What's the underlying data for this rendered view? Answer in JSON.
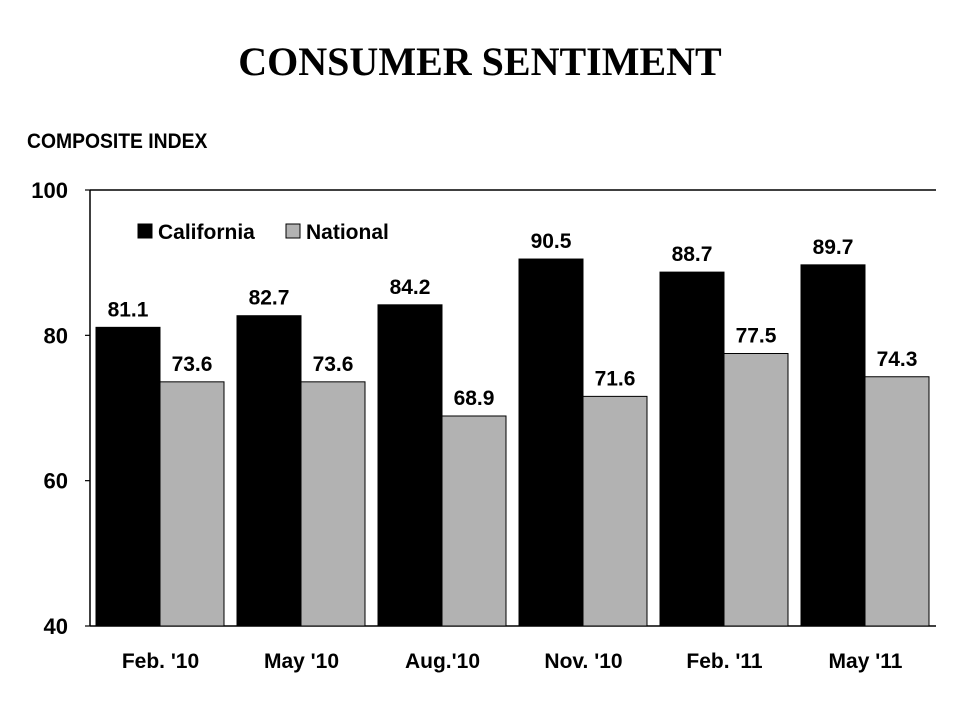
{
  "title": "CONSUMER SENTIMENT",
  "chart_data": {
    "type": "bar",
    "title": "CONSUMER SENTIMENT",
    "ylabel": "COMPOSITE INDEX",
    "xlabel": "",
    "categories": [
      "Feb. '10",
      "May '10",
      "Aug.'10",
      "Nov. '10",
      "Feb. '11",
      "May '11"
    ],
    "series": [
      {
        "name": "California",
        "color": "#000000",
        "values": [
          81.1,
          82.7,
          84.2,
          90.5,
          88.7,
          89.7
        ],
        "labels": [
          "81.1",
          "82.7",
          "84.2",
          "90.5",
          "88.7",
          "89.7"
        ]
      },
      {
        "name": "National",
        "color": "#b2b2b2",
        "values": [
          73.6,
          73.6,
          68.9,
          71.6,
          77.5,
          74.3
        ],
        "labels": [
          "73.6",
          "73.6",
          "68.9",
          "71.6",
          "77.5",
          "74.3"
        ]
      }
    ],
    "ylim": [
      40,
      100
    ],
    "yticks": [
      "40",
      "60",
      "80",
      "100"
    ],
    "grid": false,
    "legend": "top-left"
  }
}
